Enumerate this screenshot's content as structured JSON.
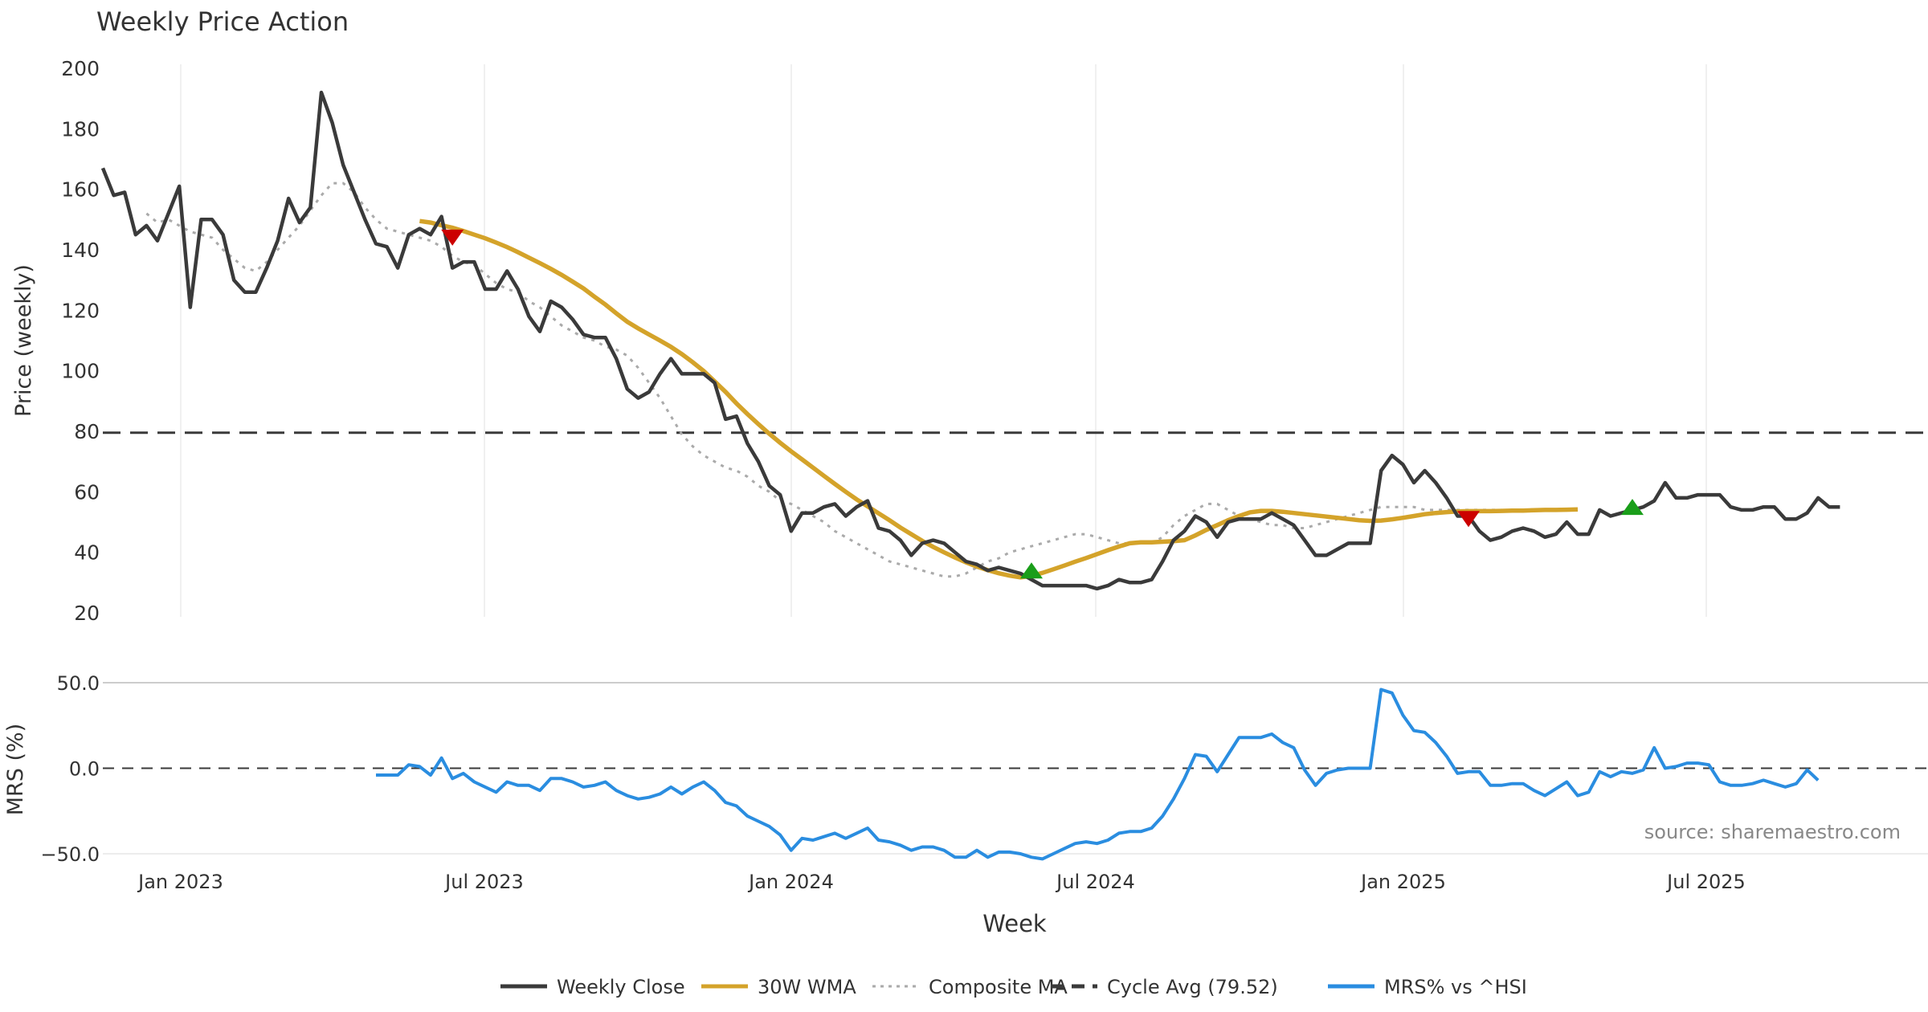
{
  "chart_data": {
    "type": "line",
    "title": "Weekly Price Action",
    "xlabel": "Week",
    "x_ticks": [
      "Jan 2023",
      "Jul 2023",
      "Jan 2024",
      "Jul 2024",
      "Jan 2025",
      "Jul 2025"
    ],
    "price_panel": {
      "ylabel": "Price (weekly)",
      "ylim": [
        20,
        200
      ],
      "y_ticks": [
        "200",
        "180",
        "160",
        "140",
        "120",
        "100",
        "80",
        "60",
        "40",
        "20"
      ],
      "cycle_avg": 79.52,
      "series": [
        {
          "name": "Weekly Close",
          "color": "#3a3a3a",
          "style": "solid",
          "start_week": 0,
          "values": [
            167,
            158,
            159,
            145,
            148,
            143,
            152,
            161,
            121,
            150,
            150,
            145,
            130,
            126,
            126,
            134,
            143,
            157,
            149,
            154,
            192,
            182,
            168,
            159,
            150,
            142,
            141,
            134,
            145,
            147,
            145,
            151,
            134,
            136,
            136,
            127,
            127,
            133,
            127,
            118,
            113,
            123,
            121,
            117,
            112,
            111,
            111,
            104,
            94,
            91,
            93,
            99,
            104,
            99,
            99,
            99,
            96,
            84,
            85,
            76,
            70,
            62,
            59,
            47,
            53,
            53,
            55,
            56,
            52,
            55,
            57,
            48,
            47,
            44,
            39,
            43,
            44,
            43,
            40,
            37,
            36,
            34,
            35,
            34,
            33,
            31,
            29,
            29,
            29,
            29,
            29,
            28,
            29,
            31,
            30,
            30,
            31,
            37,
            44,
            47,
            52,
            50,
            45,
            50,
            51,
            51,
            51,
            53,
            51,
            49,
            44,
            39,
            39,
            41,
            43,
            43,
            43,
            67,
            72,
            69,
            63,
            67,
            63,
            58,
            52,
            52,
            47,
            44,
            45,
            47,
            48,
            47,
            45,
            46,
            50,
            46,
            46,
            54,
            52,
            53,
            54,
            55,
            57,
            63,
            58,
            58,
            59,
            59,
            59,
            55,
            54,
            54,
            55,
            55,
            51,
            51,
            53,
            58,
            55,
            55
          ]
        },
        {
          "name": "30W WMA",
          "color": "#d4a32a",
          "style": "solid",
          "start_week": 29,
          "values": [
            149.5,
            149.0,
            148.1,
            147.3,
            146.2,
            145.0,
            143.8,
            142.4,
            140.9,
            139.2,
            137.4,
            135.6,
            133.7,
            131.7,
            129.5,
            127.2,
            124.5,
            121.9,
            119.0,
            116.2,
            114.0,
            112.0,
            110.0,
            107.9,
            105.5,
            102.8,
            99.9,
            96.5,
            93.0,
            89.2,
            85.7,
            82.4,
            79.2,
            76.2,
            73.4,
            70.7,
            68.0,
            65.3,
            62.6,
            60.0,
            57.5,
            55.2,
            52.9,
            50.6,
            48.2,
            46.0,
            43.8,
            41.8,
            40.0,
            38.3,
            36.7,
            35.3,
            34.1,
            33.1,
            32.3,
            31.7,
            32.2,
            33.2,
            34.4,
            35.6,
            36.9,
            38.1,
            39.4,
            40.7,
            41.9,
            43.0,
            43.3,
            43.3,
            43.5,
            43.7,
            44.0,
            45.6,
            47.4,
            49.0,
            50.6,
            52.0,
            53.2,
            53.7,
            53.7,
            53.4,
            53.0,
            52.6,
            52.2,
            51.8,
            51.4,
            51.0,
            50.6,
            50.4,
            50.5,
            50.9,
            51.4,
            52.0,
            52.6,
            53.0,
            53.3,
            53.5,
            53.6,
            53.6,
            53.6,
            53.7,
            53.8,
            53.8,
            53.9,
            54.0,
            54.0,
            54.1,
            54.2
          ]
        },
        {
          "name": "Composite MA",
          "color": "#aaaaaa",
          "style": "dotted",
          "start_week": 4,
          "values": [
            152,
            149,
            150,
            148,
            146,
            145,
            144,
            140,
            137,
            134,
            133,
            136,
            140,
            144,
            148,
            153,
            158,
            162,
            162,
            159,
            154,
            150,
            147,
            146,
            145,
            144,
            143,
            141,
            138,
            136,
            135,
            132,
            129,
            127,
            126,
            123,
            121,
            118,
            115,
            113,
            111,
            110,
            108,
            107,
            105,
            101,
            96,
            91,
            85,
            79,
            75,
            72,
            70,
            68,
            67,
            65,
            62,
            60,
            57,
            56,
            54,
            52,
            50,
            47,
            45,
            43,
            41,
            39,
            37,
            36,
            35,
            34,
            33,
            32,
            32,
            33,
            35,
            37,
            38,
            40,
            41,
            42,
            43,
            44,
            45,
            46,
            46,
            45,
            44,
            43,
            43,
            43,
            43,
            45,
            49,
            52,
            54,
            56,
            56,
            54,
            52,
            51,
            50,
            49,
            49,
            48,
            48,
            49,
            50,
            51,
            52,
            53,
            54,
            55,
            55,
            55,
            55,
            54,
            54,
            54,
            54,
            54,
            54,
            54,
            54
          ]
        }
      ],
      "signals": [
        {
          "type": "sell",
          "color": "#cc0000",
          "week": 32,
          "value": 144
        },
        {
          "type": "buy",
          "color": "#1a9e1a",
          "week": 85,
          "value": 34
        },
        {
          "type": "sell",
          "color": "#cc0000",
          "week": 125,
          "value": 51
        },
        {
          "type": "buy",
          "color": "#1a9e1a",
          "week": 140,
          "value": 55
        }
      ]
    },
    "mrs_panel": {
      "ylabel": "MRS (%)",
      "ylim": [
        -50,
        50
      ],
      "y_ticks": [
        "50.0",
        "0.0",
        "−50.0"
      ],
      "zero_line": 0,
      "series": {
        "name": "MRS% vs ^HSI",
        "color": "#2a8de0",
        "start_week": 25,
        "values": [
          -4,
          -4,
          -4,
          2,
          1,
          -4,
          6,
          -6,
          -3,
          -8,
          -11,
          -14,
          -8,
          -10,
          -10,
          -13,
          -6,
          -6,
          -8,
          -11,
          -10,
          -8,
          -13,
          -16,
          -18,
          -17,
          -15,
          -11,
          -15,
          -11,
          -8,
          -13,
          -20,
          -22,
          -28,
          -31,
          -34,
          -39,
          -48,
          -41,
          -42,
          -40,
          -38,
          -41,
          -38,
          -35,
          -42,
          -43,
          -45,
          -48,
          -46,
          -46,
          -48,
          -52,
          -52,
          -48,
          -52,
          -49,
          -49,
          -50,
          -52,
          -53,
          -50,
          -47,
          -44,
          -43,
          -44,
          -42,
          -38,
          -37,
          -37,
          -35,
          -28,
          -18,
          -6,
          8,
          7,
          -2,
          8,
          18,
          18,
          18,
          20,
          15,
          12,
          -1,
          -10,
          -3,
          -1,
          0,
          0,
          0,
          46,
          44,
          31,
          22,
          21,
          15,
          7,
          -3,
          -2,
          -2,
          -10,
          -10,
          -9,
          -9,
          -13,
          -16,
          -12,
          -8,
          -16,
          -14,
          -2,
          -5,
          -2,
          -3,
          -1,
          12,
          0,
          1,
          3,
          3,
          2,
          -8,
          -10,
          -10,
          -9,
          -7,
          -9,
          -11,
          -9,
          -1,
          -7
        ]
      }
    },
    "legend": [
      {
        "label": "Weekly Close",
        "color": "#3a3a3a",
        "style": "solid"
      },
      {
        "label": "30W WMA",
        "color": "#d4a32a",
        "style": "solid"
      },
      {
        "label": "Composite MA",
        "color": "#aaaaaa",
        "style": "dotted"
      },
      {
        "label": "Cycle Avg (79.52)",
        "color": "#3a3a3a",
        "style": "dashed"
      },
      {
        "label": "MRS% vs ^HSI",
        "color": "#2a8de0",
        "style": "solid"
      }
    ],
    "source": "source: sharemaestro.com"
  }
}
